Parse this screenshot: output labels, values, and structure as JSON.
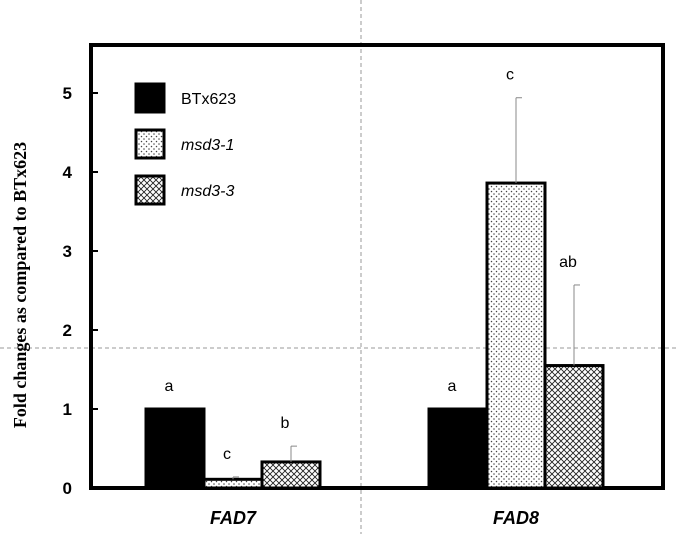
{
  "chart_data": {
    "type": "bar",
    "ylabel": "Fold changes as compared to BTx623",
    "xlabel": "",
    "ylim": [
      0,
      5.6
    ],
    "yticks": [
      "0",
      "1",
      "2",
      "3",
      "4",
      "5"
    ],
    "ytick_values": [
      0,
      1,
      2,
      3,
      4,
      5
    ],
    "categories": [
      "FAD7",
      "FAD8"
    ],
    "legend_position": "top-left",
    "grid": false,
    "series": [
      {
        "name": "BTx623",
        "pattern": "solid-black",
        "values": [
          1.0,
          1.0
        ],
        "errors": [
          0,
          0
        ],
        "significance": [
          "a",
          "a"
        ]
      },
      {
        "name": "msd3-1",
        "pattern": "dots",
        "values": [
          0.11,
          3.86
        ],
        "errors": [
          0.03,
          1.08
        ],
        "significance": [
          "c",
          "c"
        ]
      },
      {
        "name": "msd3-3",
        "pattern": "crosshatch",
        "values": [
          0.33,
          1.55
        ],
        "errors": [
          0.2,
          1.02
        ],
        "significance": [
          "b",
          "ab"
        ]
      }
    ]
  }
}
